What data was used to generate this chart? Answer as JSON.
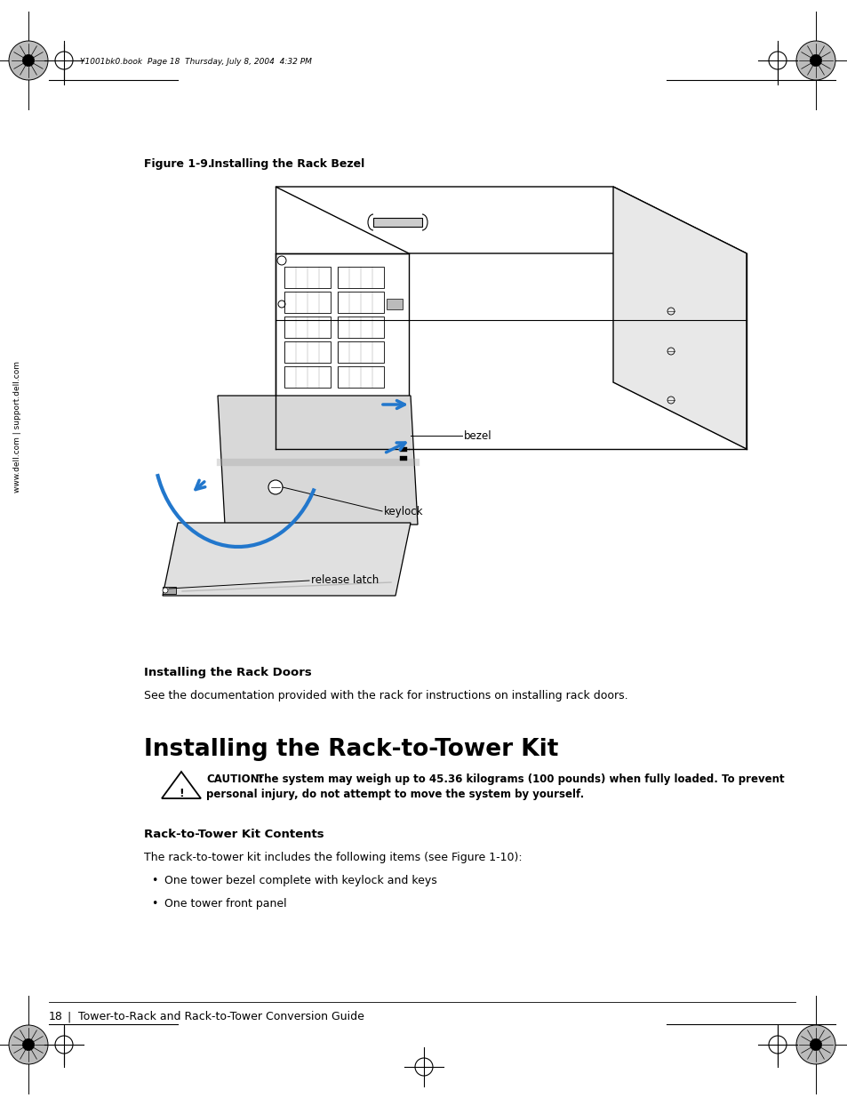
{
  "page_header_text": "Y1001bk0.book  Page 18  Thursday, July 8, 2004  4:32 PM",
  "figure_label": "Figure 1-9.",
  "figure_title": "    Installing the Rack Bezel",
  "sidebar_text": "www.dell.com | support.dell.com",
  "labels": [
    "bezel",
    "keylock",
    "release latch"
  ],
  "section1_title": "Installing the Rack Doors",
  "section1_body": "See the documentation provided with the rack for instructions on installing rack doors.",
  "section2_title": "Installing the Rack-to-Tower Kit",
  "caution_label": "CAUTION:",
  "caution_line1": " The system may weigh up to 45.36 kilograms (100 pounds) when fully loaded. To prevent",
  "caution_line2": "personal injury, do not attempt to move the system by yourself.",
  "section3_title": "Rack-to-Tower Kit Contents",
  "section3_body": "The rack-to-tower kit includes the following items (see Figure 1-10):",
  "bullet1": "One tower bezel complete with keylock and keys",
  "bullet2": "One tower front panel",
  "footer_page": "18",
  "footer_sep": "|",
  "footer_text": "Tower-to-Rack and Rack-to-Tower Conversion Guide",
  "bg_color": "#ffffff",
  "text_color": "#000000",
  "arrow_color": "#2277cc",
  "line_color": "#000000",
  "gray_light": "#e0e0e0",
  "gray_med": "#c0c0c0",
  "gray_dark": "#888888"
}
